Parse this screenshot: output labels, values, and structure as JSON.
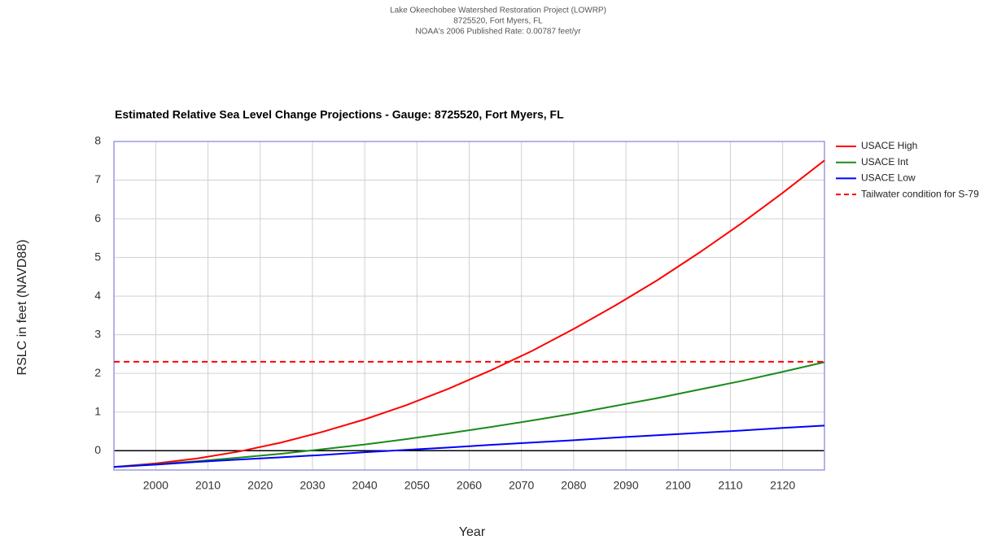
{
  "chart_data": {
    "type": "line",
    "header": [
      "Lake Okeechobee Watershed Restoration Project (LOWRP)",
      "8725520, Fort Myers, FL",
      "NOAA's 2006 Published Rate: 0.00787 feet/yr"
    ],
    "title": "Estimated Relative Sea Level Change Projections - Gauge: 8725520, Fort Myers, FL",
    "x_label": "Year",
    "y_label": "RSLC in feet (NAVD88)",
    "x": [
      1992,
      2000,
      2008,
      2016,
      2024,
      2032,
      2040,
      2048,
      2056,
      2064,
      2072,
      2080,
      2088,
      2096,
      2104,
      2112,
      2120,
      2128
    ],
    "series": [
      {
        "name": "USACE High",
        "color": "#ff0000",
        "dashed": false,
        "values": [
          -0.42,
          -0.33,
          -0.2,
          -0.02,
          0.21,
          0.49,
          0.81,
          1.18,
          1.6,
          2.07,
          2.58,
          3.15,
          3.76,
          4.41,
          5.12,
          5.87,
          6.67,
          7.51
        ]
      },
      {
        "name": "USACE Int",
        "color": "#1a8a1a",
        "dashed": false,
        "values": [
          -0.42,
          -0.35,
          -0.27,
          -0.18,
          -0.08,
          0.04,
          0.16,
          0.3,
          0.45,
          0.61,
          0.78,
          0.96,
          1.16,
          1.36,
          1.58,
          1.8,
          2.04,
          2.29
        ]
      },
      {
        "name": "USACE Low",
        "color": "#0000ff",
        "dashed": false,
        "values": [
          -0.42,
          -0.36,
          -0.29,
          -0.23,
          -0.17,
          -0.11,
          -0.04,
          0.02,
          0.08,
          0.15,
          0.21,
          0.27,
          0.34,
          0.4,
          0.46,
          0.52,
          0.59,
          0.65
        ]
      },
      {
        "name": "Tailwater condition for S-79",
        "color": "#ff0000",
        "dashed": true,
        "values": [
          2.3,
          2.3,
          2.3,
          2.3,
          2.3,
          2.3,
          2.3,
          2.3,
          2.3,
          2.3,
          2.3,
          2.3,
          2.3,
          2.3,
          2.3,
          2.3,
          2.3,
          2.3
        ]
      }
    ],
    "xlim": [
      1992,
      2128
    ],
    "ylim": [
      -0.5,
      8
    ],
    "xticks": [
      2000,
      2010,
      2020,
      2030,
      2040,
      2050,
      2060,
      2070,
      2080,
      2090,
      2100,
      2110,
      2120
    ],
    "yticks": [
      0,
      1,
      2,
      3,
      4,
      5,
      6,
      7,
      8
    ],
    "grid": true,
    "legend": "right"
  }
}
